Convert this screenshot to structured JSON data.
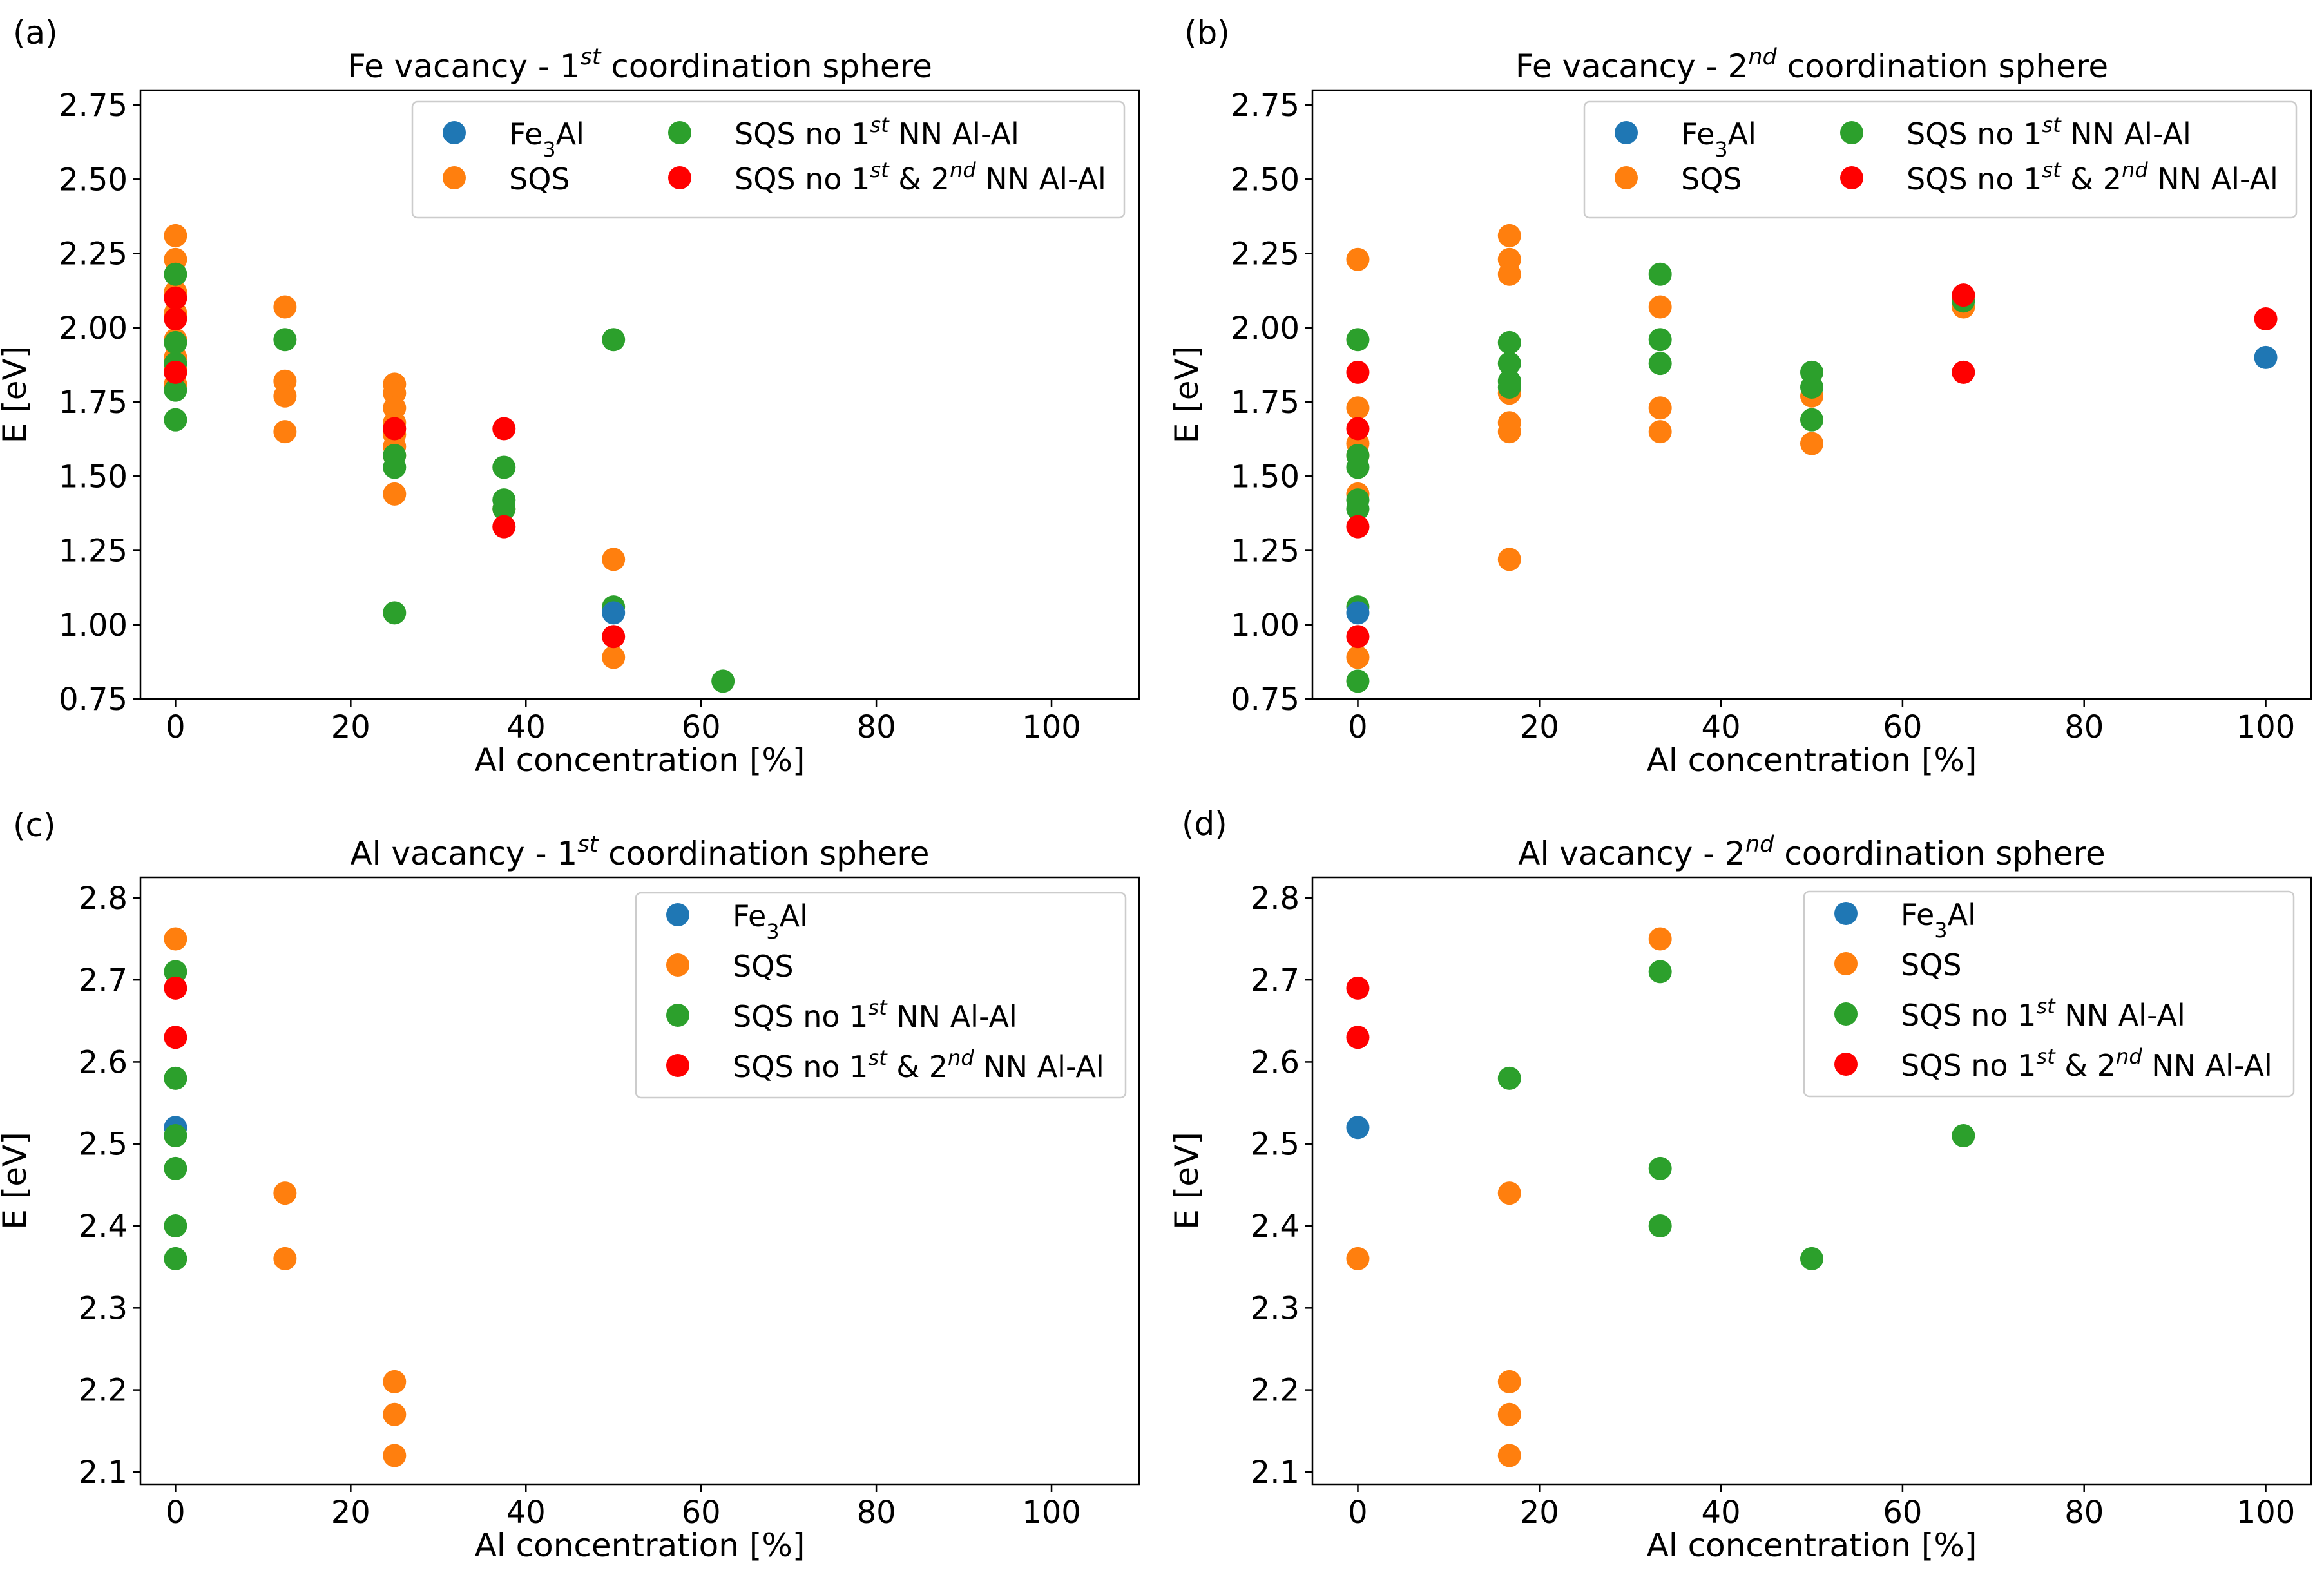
{
  "series_styles": {
    "fe3al": {
      "color": "#1f77b4",
      "legend": "Fe|3|Al"
    },
    "sqs": {
      "color": "#ff7f0e",
      "legend": "SQS"
    },
    "sqs_no1": {
      "color": "#2ca02c",
      "legend": "SQS no 1|st| NN Al-Al"
    },
    "sqs_no12": {
      "color": "#ff0000",
      "legend": "SQS no 1|st| & 2|nd| NN Al-Al"
    }
  },
  "chart_data": [
    {
      "panel_label": "(a)",
      "type": "scatter",
      "title": "Fe vacancy - 1|st| coordination sphere",
      "xlabel": "Al concentration [%]",
      "ylabel": "E [eV]",
      "xlim": [
        -4,
        110
      ],
      "ylim": [
        0.75,
        2.8
      ],
      "xticks": [
        0,
        20,
        40,
        60,
        80,
        100
      ],
      "yticks": [
        0.75,
        1.0,
        1.25,
        1.5,
        1.75,
        2.0,
        2.25,
        2.5,
        2.75
      ],
      "ytick_labels": [
        "0.75",
        "1.00",
        "1.25",
        "1.50",
        "1.75",
        "2.00",
        "2.25",
        "2.50",
        "2.75"
      ],
      "legend_placement": "upper-right-two-columns",
      "series": [
        {
          "key": "sqs",
          "name": "SQS",
          "points": [
            [
              0,
              2.31
            ],
            [
              0,
              2.23
            ],
            [
              0,
              2.12
            ],
            [
              0,
              2.05
            ],
            [
              0,
              1.96
            ],
            [
              0,
              1.9
            ],
            [
              0,
              1.86
            ],
            [
              0,
              1.81
            ],
            [
              12.5,
              2.07
            ],
            [
              12.5,
              1.82
            ],
            [
              12.5,
              1.77
            ],
            [
              12.5,
              1.65
            ],
            [
              25,
              1.81
            ],
            [
              25,
              1.78
            ],
            [
              25,
              1.73
            ],
            [
              25,
              1.68
            ],
            [
              25,
              1.64
            ],
            [
              25,
              1.6
            ],
            [
              25,
              1.57
            ],
            [
              25,
              1.44
            ],
            [
              37.5,
              1.39
            ],
            [
              50,
              1.22
            ],
            [
              50,
              0.89
            ]
          ]
        },
        {
          "key": "sqs_no1",
          "name": "SQS no 1st NN Al-Al",
          "points": [
            [
              0,
              2.18
            ],
            [
              0,
              1.95
            ],
            [
              0,
              1.88
            ],
            [
              0,
              1.79
            ],
            [
              0,
              1.69
            ],
            [
              12.5,
              1.96
            ],
            [
              25,
              1.57
            ],
            [
              25,
              1.53
            ],
            [
              25,
              1.04
            ],
            [
              37.5,
              1.53
            ],
            [
              37.5,
              1.42
            ],
            [
              37.5,
              1.39
            ],
            [
              50,
              1.96
            ],
            [
              50,
              1.06
            ],
            [
              62.5,
              0.81
            ]
          ]
        },
        {
          "key": "fe3al",
          "name": "Fe3Al",
          "points": [
            [
              50,
              1.04
            ]
          ]
        },
        {
          "key": "sqs_no12",
          "name": "SQS no 1st & 2nd NN Al-Al",
          "points": [
            [
              0,
              2.1
            ],
            [
              0,
              2.03
            ],
            [
              0,
              1.85
            ],
            [
              25,
              1.66
            ],
            [
              37.5,
              1.66
            ],
            [
              37.5,
              1.33
            ],
            [
              50,
              0.96
            ]
          ]
        }
      ]
    },
    {
      "panel_label": "(b)",
      "type": "scatter",
      "title": "Fe vacancy - 2|nd| coordination sphere",
      "xlabel": "Al concentration [%]",
      "ylabel": "E [eV]",
      "xlim": [
        -5,
        105
      ],
      "ylim": [
        0.75,
        2.8
      ],
      "xticks": [
        0,
        20,
        40,
        60,
        80,
        100
      ],
      "yticks": [
        0.75,
        1.0,
        1.25,
        1.5,
        1.75,
        2.0,
        2.25,
        2.5,
        2.75
      ],
      "ytick_labels": [
        "0.75",
        "1.00",
        "1.25",
        "1.50",
        "1.75",
        "2.00",
        "2.25",
        "2.50",
        "2.75"
      ],
      "legend_placement": "upper-right-two-columns",
      "series": [
        {
          "key": "sqs",
          "name": "SQS",
          "points": [
            [
              0,
              2.23
            ],
            [
              0,
              1.73
            ],
            [
              0,
              1.61
            ],
            [
              0,
              1.57
            ],
            [
              0,
              1.44
            ],
            [
              0,
              0.89
            ],
            [
              16.7,
              2.31
            ],
            [
              16.7,
              2.23
            ],
            [
              16.7,
              2.18
            ],
            [
              16.7,
              1.78
            ],
            [
              16.7,
              1.68
            ],
            [
              16.7,
              1.65
            ],
            [
              16.7,
              1.22
            ],
            [
              33.3,
              2.07
            ],
            [
              33.3,
              1.73
            ],
            [
              33.3,
              1.65
            ],
            [
              50,
              1.77
            ],
            [
              50,
              1.61
            ],
            [
              66.7,
              2.07
            ]
          ]
        },
        {
          "key": "sqs_no1",
          "name": "SQS no 1st NN Al-Al",
          "points": [
            [
              0,
              1.96
            ],
            [
              0,
              1.57
            ],
            [
              0,
              1.53
            ],
            [
              0,
              1.42
            ],
            [
              0,
              1.39
            ],
            [
              0,
              1.06
            ],
            [
              0,
              0.81
            ],
            [
              16.7,
              1.95
            ],
            [
              16.7,
              1.88
            ],
            [
              16.7,
              1.82
            ],
            [
              16.7,
              1.8
            ],
            [
              33.3,
              2.18
            ],
            [
              33.3,
              1.96
            ],
            [
              33.3,
              1.88
            ],
            [
              50,
              1.85
            ],
            [
              50,
              1.8
            ],
            [
              50,
              1.69
            ],
            [
              66.7,
              2.09
            ]
          ]
        },
        {
          "key": "fe3al",
          "name": "Fe3Al",
          "points": [
            [
              0,
              1.04
            ],
            [
              100,
              1.9
            ]
          ]
        },
        {
          "key": "sqs_no12",
          "name": "SQS no 1st & 2nd NN Al-Al",
          "points": [
            [
              0,
              1.85
            ],
            [
              0,
              1.66
            ],
            [
              0,
              1.33
            ],
            [
              0,
              0.96
            ],
            [
              66.7,
              2.11
            ],
            [
              66.7,
              1.85
            ],
            [
              100,
              2.03
            ]
          ]
        }
      ]
    },
    {
      "panel_label": "(c)",
      "type": "scatter",
      "title": "Al vacancy - 1|st| coordination sphere",
      "xlabel": "Al concentration [%]",
      "ylabel": "E [eV]",
      "xlim": [
        -4,
        110
      ],
      "ylim": [
        2.085,
        2.825
      ],
      "xticks": [
        0,
        20,
        40,
        60,
        80,
        100
      ],
      "yticks": [
        2.1,
        2.2,
        2.3,
        2.4,
        2.5,
        2.6,
        2.7,
        2.8
      ],
      "ytick_labels": [
        "2.1",
        "2.2",
        "2.3",
        "2.4",
        "2.5",
        "2.6",
        "2.7",
        "2.8"
      ],
      "legend_placement": "upper-right",
      "series": [
        {
          "key": "sqs",
          "name": "SQS",
          "points": [
            [
              0,
              2.75
            ],
            [
              12.5,
              2.44
            ],
            [
              12.5,
              2.36
            ],
            [
              25,
              2.21
            ],
            [
              25,
              2.17
            ],
            [
              25,
              2.12
            ]
          ]
        },
        {
          "key": "fe3al",
          "name": "Fe3Al",
          "points": [
            [
              0,
              2.52
            ]
          ]
        },
        {
          "key": "sqs_no1",
          "name": "SQS no 1st NN Al-Al",
          "points": [
            [
              0,
              2.71
            ],
            [
              0,
              2.58
            ],
            [
              0,
              2.51
            ],
            [
              0,
              2.47
            ],
            [
              0,
              2.4
            ],
            [
              0,
              2.36
            ]
          ]
        },
        {
          "key": "sqs_no12",
          "name": "SQS no 1st & 2nd NN Al-Al",
          "points": [
            [
              0,
              2.69
            ],
            [
              0,
              2.63
            ]
          ]
        }
      ]
    },
    {
      "panel_label": "(d)",
      "type": "scatter",
      "title": "Al vacancy - 2|nd| coordination sphere",
      "xlabel": "Al concentration [%]",
      "ylabel": "E [eV]",
      "xlim": [
        -5,
        105
      ],
      "ylim": [
        2.085,
        2.825
      ],
      "xticks": [
        0,
        20,
        40,
        60,
        80,
        100
      ],
      "yticks": [
        2.1,
        2.2,
        2.3,
        2.4,
        2.5,
        2.6,
        2.7,
        2.8
      ],
      "ytick_labels": [
        "2.1",
        "2.2",
        "2.3",
        "2.4",
        "2.5",
        "2.6",
        "2.7",
        "2.8"
      ],
      "legend_placement": "upper-right",
      "series": [
        {
          "key": "fe3al",
          "name": "Fe3Al",
          "points": [
            [
              0,
              2.52
            ]
          ]
        },
        {
          "key": "sqs",
          "name": "SQS",
          "points": [
            [
              0,
              2.36
            ],
            [
              16.7,
              2.44
            ],
            [
              16.7,
              2.21
            ],
            [
              16.7,
              2.17
            ],
            [
              16.7,
              2.12
            ],
            [
              33.3,
              2.75
            ]
          ]
        },
        {
          "key": "sqs_no1",
          "name": "SQS no 1st NN Al-Al",
          "points": [
            [
              16.7,
              2.58
            ],
            [
              33.3,
              2.71
            ],
            [
              33.3,
              2.47
            ],
            [
              33.3,
              2.4
            ],
            [
              50,
              2.36
            ],
            [
              66.7,
              2.51
            ]
          ]
        },
        {
          "key": "sqs_no12",
          "name": "SQS no 1st & 2nd NN Al-Al",
          "points": [
            [
              0,
              2.69
            ],
            [
              0,
              2.63
            ]
          ]
        }
      ]
    }
  ]
}
